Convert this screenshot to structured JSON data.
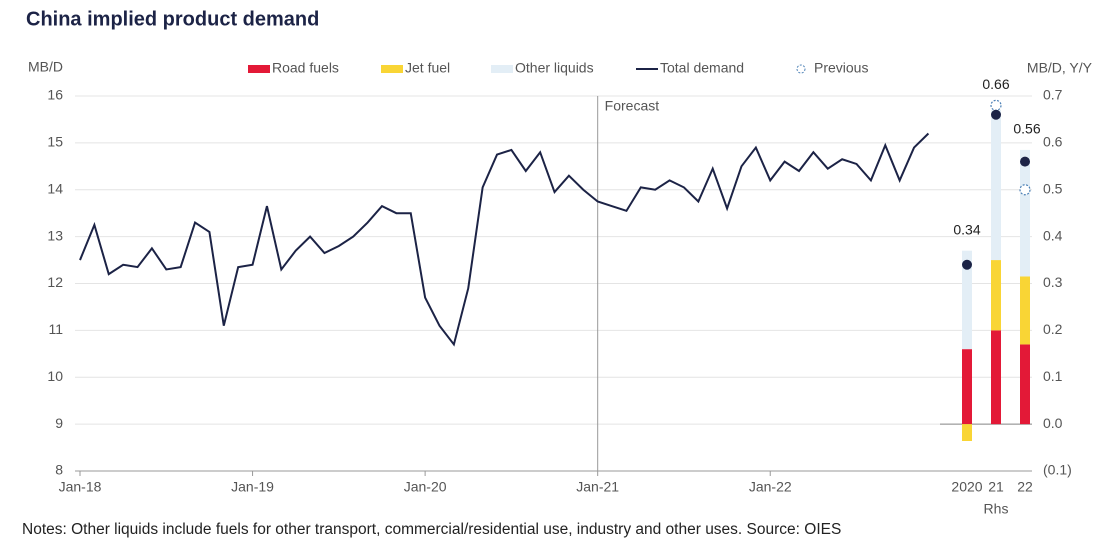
{
  "chart_data": [
    {
      "type": "line",
      "title": "China implied product demand",
      "ylabel": "MB/D",
      "categories": [
        "Jan-18",
        null,
        null,
        null,
        null,
        null,
        null,
        null,
        null,
        null,
        null,
        null,
        "Jan-19",
        null,
        null,
        null,
        null,
        null,
        null,
        null,
        null,
        null,
        null,
        null,
        "Jan-20",
        null,
        null,
        null,
        null,
        null,
        null,
        null,
        null,
        null,
        null,
        null,
        "Jan-21",
        null,
        null,
        null,
        null,
        null,
        null,
        null,
        null,
        null,
        null,
        null,
        "Jan-22",
        null,
        null,
        null,
        null,
        null,
        null,
        null,
        null,
        null,
        null,
        null
      ],
      "series": [
        {
          "name": "Total demand",
          "color": "#1c2346",
          "values": [
            12.5,
            13.25,
            12.2,
            12.4,
            12.35,
            12.75,
            12.3,
            12.35,
            13.3,
            13.1,
            11.1,
            12.35,
            12.4,
            13.65,
            12.3,
            12.7,
            13.0,
            12.65,
            12.8,
            13.0,
            13.3,
            13.65,
            13.5,
            13.5,
            11.7,
            11.1,
            10.7,
            11.9,
            14.05,
            14.75,
            14.85,
            14.4,
            14.8,
            13.95,
            14.3,
            14.0,
            13.75,
            13.65,
            13.55,
            14.05,
            14.0,
            14.2,
            14.05,
            13.75,
            14.45,
            13.6,
            14.5,
            14.9,
            14.2,
            14.6,
            14.4,
            14.8,
            14.45,
            14.65,
            14.55,
            14.2,
            14.95,
            14.2,
            14.9,
            15.2
          ]
        }
      ],
      "ylim": [
        8,
        16
      ],
      "yticks": [
        8,
        9,
        10,
        11,
        12,
        13,
        14,
        15,
        16
      ],
      "grid": true,
      "annotations": [
        {
          "text": "Forecast",
          "at": "Jan-21"
        }
      ]
    },
    {
      "type": "bar",
      "stacked": true,
      "y2label": "MB/D, Y/Y",
      "xlabel": "Rhs",
      "categories": [
        "2020",
        "21",
        "22"
      ],
      "series": [
        {
          "name": "Road fuels",
          "color": "#e31937",
          "axis": "y2",
          "values": [
            0.16,
            0.2,
            0.17
          ]
        },
        {
          "name": "Jet fuel",
          "color": "#f9d535",
          "axis": "y2",
          "values": [
            -0.036,
            0.15,
            0.145
          ]
        },
        {
          "name": "Other liquids",
          "color": "#e3eef6",
          "axis": "y2",
          "values": [
            0.21,
            0.32,
            0.27
          ]
        }
      ],
      "totals": {
        "color": "#1c2346",
        "values": [
          0.34,
          0.66,
          0.56
        ]
      },
      "previous": {
        "name": "Previous",
        "color": "#4a7fb5",
        "values": [
          null,
          0.68,
          0.5
        ]
      },
      "y2lim": [
        -0.1,
        0.7
      ],
      "y2ticks": [
        {
          "value": -0.1,
          "label": "(0.1)"
        },
        {
          "value": 0,
          "label": "0.0"
        },
        0.1,
        0.2,
        0.3,
        0.4,
        0.5,
        0.6,
        0.7
      ]
    }
  ],
  "notes": "Notes: Other liquids include fuels for other transport, commercial/residential use, industry and other uses. Source: OIES"
}
